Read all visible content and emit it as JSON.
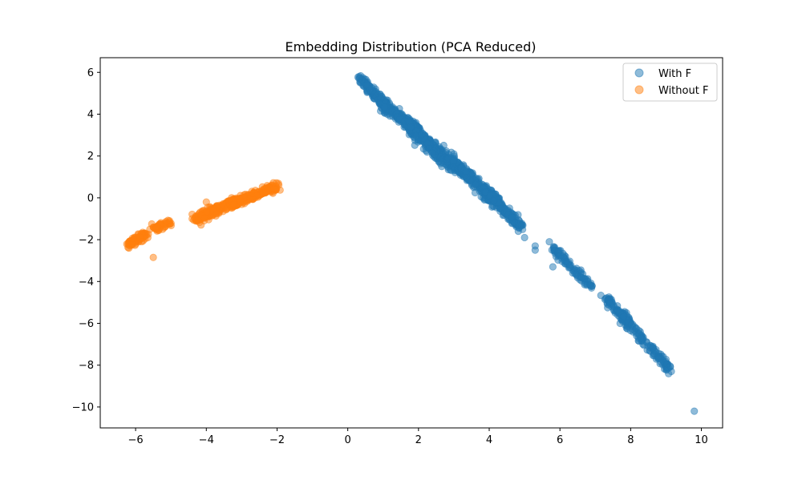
{
  "chart_data": {
    "type": "scatter",
    "title": "Embedding Distribution (PCA Reduced)",
    "xlabel": "",
    "ylabel": "",
    "xlim": [
      -7.0,
      10.6
    ],
    "ylim": [
      -11.0,
      6.7
    ],
    "xticks": [
      -6,
      -4,
      -2,
      0,
      2,
      4,
      6,
      8,
      10
    ],
    "xtick_labels": [
      "−6",
      "−4",
      "−2",
      "0",
      "2",
      "4",
      "6",
      "8",
      "10"
    ],
    "yticks": [
      6,
      4,
      2,
      0,
      -2,
      -4,
      -6,
      -8,
      -10
    ],
    "ytick_labels": [
      "6",
      "4",
      "2",
      "0",
      "−2",
      "−4",
      "−6",
      "−8",
      "−10"
    ],
    "grid": false,
    "legend_position": "top-right",
    "series": [
      {
        "name": "With F",
        "color": "#1f77b4",
        "alpha": 0.5,
        "segments": [
          {
            "x0": 0.3,
            "y0": 5.8,
            "x1": 1.2,
            "y1": 4.2,
            "n": 140,
            "spread": 0.1
          },
          {
            "x0": 1.0,
            "y0": 4.4,
            "x1": 2.0,
            "y1": 3.3,
            "n": 160,
            "spread": 0.1
          },
          {
            "x0": 1.6,
            "y0": 3.6,
            "x1": 3.0,
            "y1": 1.5,
            "n": 300,
            "spread": 0.14
          },
          {
            "x0": 2.8,
            "y0": 1.9,
            "x1": 4.1,
            "y1": 0.0,
            "n": 250,
            "spread": 0.12
          },
          {
            "x0": 3.9,
            "y0": 0.3,
            "x1": 4.9,
            "y1": -1.4,
            "n": 180,
            "spread": 0.1
          },
          {
            "x0": 5.8,
            "y0": -2.4,
            "x1": 6.9,
            "y1": -4.3,
            "n": 90,
            "spread": 0.09
          },
          {
            "x0": 7.3,
            "y0": -4.8,
            "x1": 9.1,
            "y1": -8.2,
            "n": 200,
            "spread": 0.1
          }
        ],
        "outliers": [
          {
            "x": 3.0,
            "y": 2.1
          },
          {
            "x": 5.0,
            "y": -1.9
          },
          {
            "x": 5.3,
            "y": -2.5
          },
          {
            "x": 5.3,
            "y": -2.3
          },
          {
            "x": 5.7,
            "y": -2.1
          },
          {
            "x": 5.8,
            "y": -3.3
          },
          {
            "x": 9.8,
            "y": -10.2
          },
          {
            "x": 9.15,
            "y": -8.3
          }
        ]
      },
      {
        "name": "Without F",
        "color": "#ff7f0e",
        "alpha": 0.5,
        "segments": [
          {
            "x0": -6.2,
            "y0": -2.2,
            "x1": -5.7,
            "y1": -1.7,
            "n": 90,
            "spread": 0.09
          },
          {
            "x0": -5.5,
            "y0": -1.5,
            "x1": -5.0,
            "y1": -1.15,
            "n": 50,
            "spread": 0.08
          },
          {
            "x0": -4.3,
            "y0": -1.0,
            "x1": -3.2,
            "y1": -0.2,
            "n": 230,
            "spread": 0.11
          },
          {
            "x0": -3.3,
            "y0": -0.3,
            "x1": -2.0,
            "y1": 0.55,
            "n": 200,
            "spread": 0.1
          }
        ],
        "outliers": [
          {
            "x": -5.5,
            "y": -2.85
          },
          {
            "x": -4.4,
            "y": -1.0
          },
          {
            "x": -4.0,
            "y": -0.2
          },
          {
            "x": -4.15,
            "y": -1.3
          }
        ]
      }
    ]
  }
}
